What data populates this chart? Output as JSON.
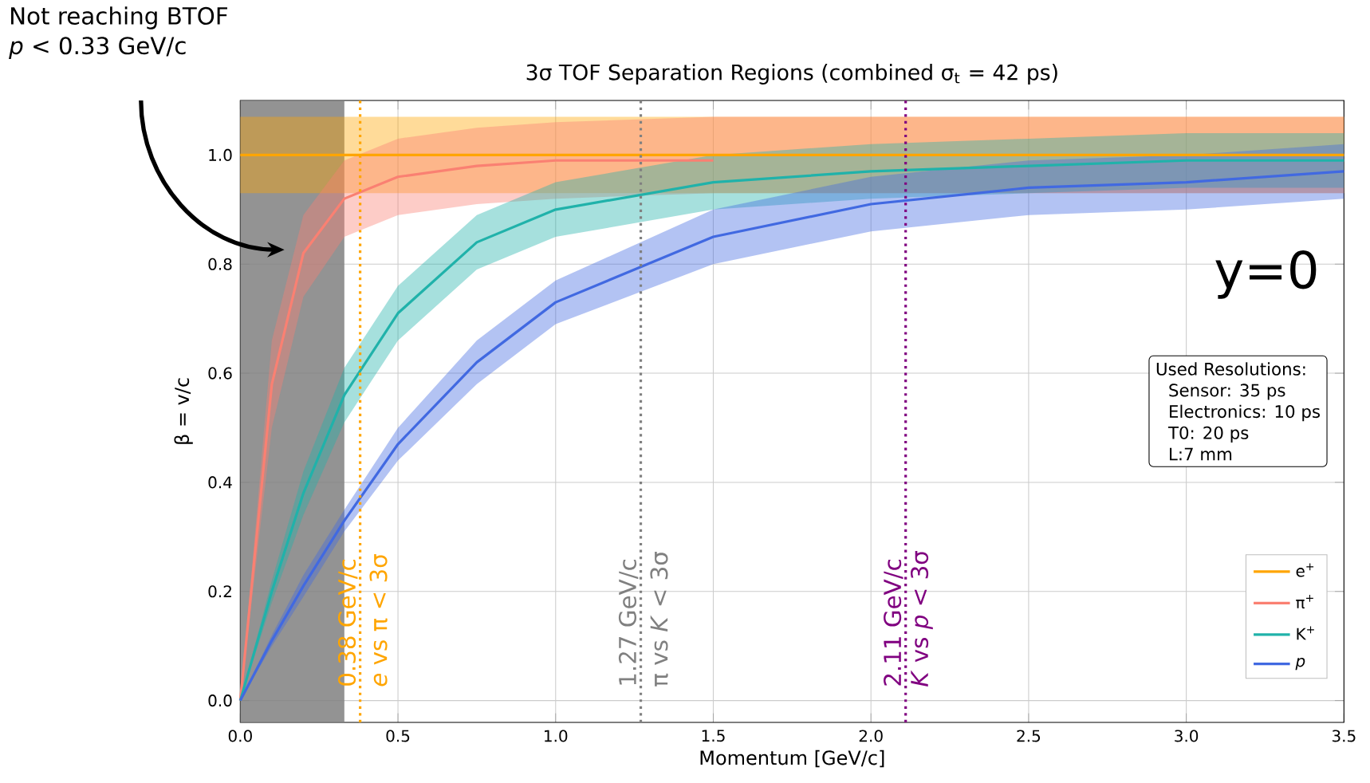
{
  "chart_data": {
    "type": "line",
    "title": "3σ TOF Separation Regions (combined σ$_{t}$ = 42 ps)",
    "xlabel": "Momentum [GeV/c]",
    "ylabel": "β = v/c",
    "x": [
      0,
      0.1,
      0.2,
      0.33,
      0.5,
      0.75,
      1.0,
      1.5,
      2.0,
      2.5,
      3.0,
      3.5
    ],
    "series": [
      {
        "name": "e$^{+}$",
        "color": "#ffa500",
        "values": [
          1.0,
          1.0,
          1.0,
          1.0,
          1.0,
          1.0,
          1.0,
          1.0,
          1.0,
          1.0,
          1.0,
          1.0
        ],
        "lower": [
          0.93,
          0.93,
          0.93,
          0.93,
          0.93,
          0.93,
          0.93,
          0.93,
          0.93,
          0.93,
          0.93,
          0.93
        ],
        "upper": [
          1.07,
          1.07,
          1.07,
          1.07,
          1.07,
          1.07,
          1.07,
          1.07,
          1.07,
          1.07,
          1.07,
          1.07
        ]
      },
      {
        "name": "π$^{+}$",
        "color": "#fa8072",
        "values": [
          0,
          0.58,
          0.82,
          0.92,
          0.96,
          0.98,
          0.99,
          0.99,
          null,
          null,
          null,
          null
        ],
        "lower": [
          0,
          0.5,
          0.74,
          0.85,
          0.89,
          0.91,
          0.92,
          0.93,
          0.93,
          0.93,
          0.93,
          0.93
        ],
        "upper": [
          0,
          0.66,
          0.89,
          0.99,
          1.03,
          1.05,
          1.06,
          1.07,
          1.07,
          1.07,
          1.07,
          1.07
        ]
      },
      {
        "name": "K$^{+}$",
        "color": "#20b2aa",
        "values": [
          0,
          0.2,
          0.38,
          0.56,
          0.71,
          0.84,
          0.9,
          0.95,
          0.97,
          0.98,
          0.99,
          0.99
        ],
        "lower": [
          0,
          0.18,
          0.34,
          0.51,
          0.66,
          0.79,
          0.85,
          0.9,
          0.92,
          0.93,
          0.94,
          0.94
        ],
        "upper": [
          0,
          0.22,
          0.42,
          0.61,
          0.76,
          0.89,
          0.95,
          1.0,
          1.02,
          1.03,
          1.04,
          1.04
        ]
      },
      {
        "name": "*p*",
        "color": "#4169e1",
        "values": [
          0,
          0.11,
          0.21,
          0.33,
          0.47,
          0.62,
          0.73,
          0.85,
          0.91,
          0.94,
          0.95,
          0.97
        ],
        "lower": [
          0,
          0.1,
          0.19,
          0.31,
          0.44,
          0.58,
          0.69,
          0.8,
          0.86,
          0.89,
          0.9,
          0.92
        ],
        "upper": [
          0,
          0.12,
          0.23,
          0.35,
          0.5,
          0.66,
          0.77,
          0.9,
          0.96,
          0.99,
          1.0,
          1.02
        ]
      }
    ],
    "xlim": [
      0,
      3.5
    ],
    "ylim": [
      -0.04,
      1.1
    ],
    "xticks": [
      {
        "value": 0,
        "label": "0.0"
      },
      {
        "value": 0.5,
        "label": "0.5"
      },
      {
        "value": 1.0,
        "label": "1.0"
      },
      {
        "value": 1.5,
        "label": "1.5"
      },
      {
        "value": 2.0,
        "label": "2.0"
      },
      {
        "value": 2.5,
        "label": "2.5"
      },
      {
        "value": 3.0,
        "label": "3.0"
      },
      {
        "value": 3.5,
        "label": "3.5"
      }
    ],
    "yticks": [
      {
        "value": 0,
        "label": "0.0"
      },
      {
        "value": 0.2,
        "label": "0.2"
      },
      {
        "value": 0.4,
        "label": "0.4"
      },
      {
        "value": 0.6,
        "label": "0.6"
      },
      {
        "value": 0.8,
        "label": "0.8"
      },
      {
        "value": 1.0,
        "label": "1.0"
      }
    ],
    "ref_lines": [
      {
        "axis": "x",
        "value": 0.38,
        "label": "0.38 GeV/c",
        "color": "#ffa500",
        "line_style": "dotted"
      },
      {
        "axis": "x",
        "value": 1.27,
        "label": "1.27 GeV/c",
        "color": "#808080",
        "line_style": "dotted"
      },
      {
        "axis": "x",
        "value": 2.11,
        "label": "2.11 GeV/c",
        "color": "#800080",
        "line_style": "dotted"
      }
    ],
    "bands": [
      {
        "axis": "x",
        "from": 0,
        "to": 0.33,
        "color": "#808080"
      }
    ],
    "annotations": [
      "Not reaching BTOF",
      "*p* < 0.33 GeV/c",
      "y=0",
      "Used Resolutions:",
      "Sensor: 35 ps",
      "Electronics: 10 ps",
      "T0: 20 ps",
      "L:7 mm",
      {
        "text": "*e* vs π < 3σ",
        "x": 0.38,
        "y": 0.02
      },
      {
        "text": "π vs *K* < 3σ",
        "x": 1.27,
        "y": 0.02
      },
      {
        "text": "*K* vs *p* < 3σ",
        "x": 2.11,
        "y": 0.02
      }
    ],
    "grid": true,
    "legend": "bottom right",
    "marker": "none",
    "line_style": "solid"
  }
}
